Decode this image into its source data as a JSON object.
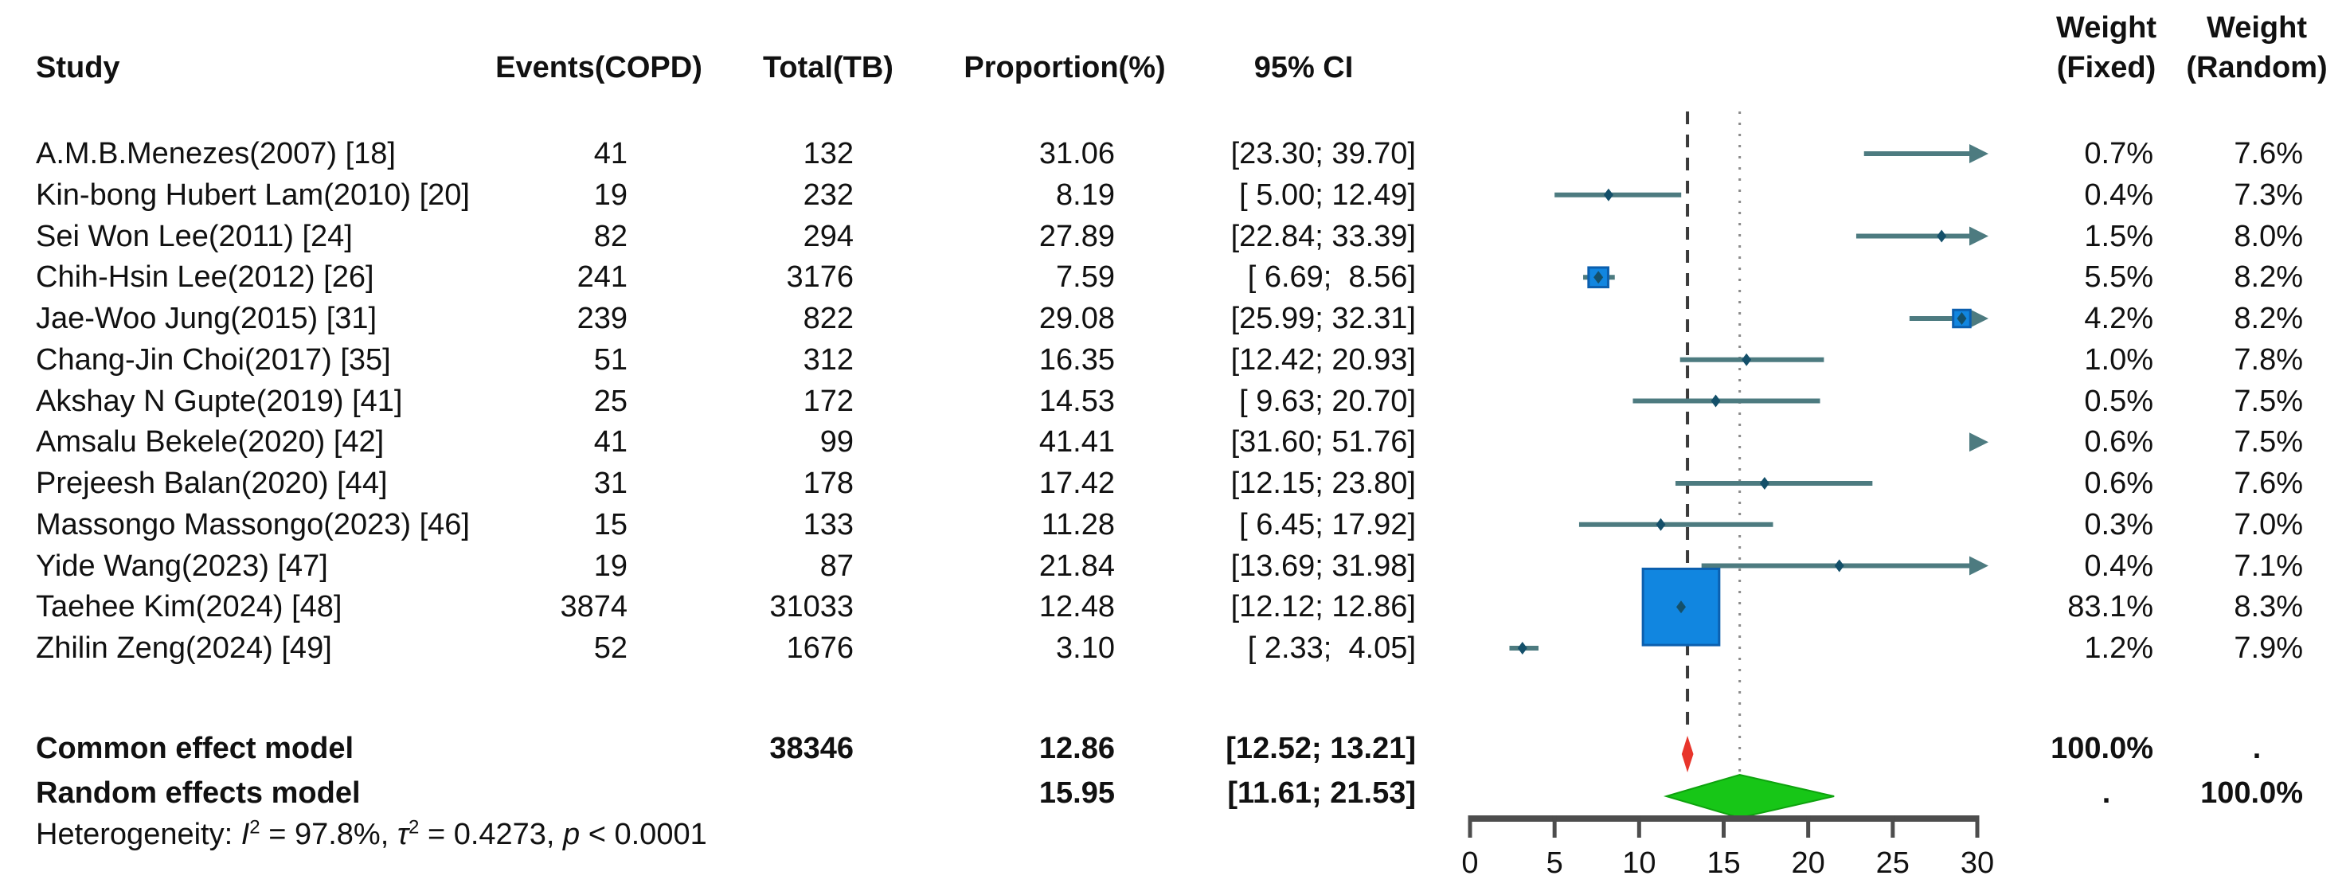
{
  "columns": {
    "study": "Study",
    "events": "Events(COPD)",
    "total": "Total(TB)",
    "proportion": "Proportion(%)",
    "ci": "95% CI",
    "weight_fixed_line1": "Weight",
    "weight_fixed_line2": "(Fixed)",
    "weight_random_line1": "Weight",
    "weight_random_line2": "(Random)"
  },
  "chart_data": {
    "type": "forest",
    "x_axis": {
      "min": 0,
      "max": 30,
      "ticks": [
        0,
        5,
        10,
        15,
        20,
        25,
        30
      ]
    },
    "reference_lines": [
      {
        "value": 12.86,
        "style": "dashed"
      },
      {
        "value": 15.95,
        "style": "dotted"
      }
    ],
    "studies": [
      {
        "name": "A.M.B.Menezes(2007) [18]",
        "events": "41",
        "total": "132",
        "proportion": "31.06",
        "ci_text": "[23.30; 39.70]",
        "point": 31.06,
        "lo": 23.3,
        "hi": 39.7,
        "weight_fixed": "0.7%",
        "weight_random": "7.6%",
        "weight_fixed_value": 0.7
      },
      {
        "name": "Kin-bong Hubert Lam(2010) [20]",
        "events": "19",
        "total": "232",
        "proportion": "8.19",
        "ci_text": "[ 5.00; 12.49]",
        "point": 8.19,
        "lo": 5.0,
        "hi": 12.49,
        "weight_fixed": "0.4%",
        "weight_random": "7.3%",
        "weight_fixed_value": 0.4
      },
      {
        "name": "Sei Won Lee(2011) [24]",
        "events": "82",
        "total": "294",
        "proportion": "27.89",
        "ci_text": "[22.84; 33.39]",
        "point": 27.89,
        "lo": 22.84,
        "hi": 33.39,
        "weight_fixed": "1.5%",
        "weight_random": "8.0%",
        "weight_fixed_value": 1.5
      },
      {
        "name": "Chih-Hsin Lee(2012) [26]",
        "events": "241",
        "total": "3176",
        "proportion": "7.59",
        "ci_text": "[ 6.69;  8.56]",
        "point": 7.59,
        "lo": 6.69,
        "hi": 8.56,
        "weight_fixed": "5.5%",
        "weight_random": "8.2%",
        "weight_fixed_value": 5.5
      },
      {
        "name": "Jae-Woo Jung(2015) [31]",
        "events": "239",
        "total": "822",
        "proportion": "29.08",
        "ci_text": "[25.99; 32.31]",
        "point": 29.08,
        "lo": 25.99,
        "hi": 32.31,
        "weight_fixed": "4.2%",
        "weight_random": "8.2%",
        "weight_fixed_value": 4.2
      },
      {
        "name": "Chang-Jin Choi(2017) [35]",
        "events": "51",
        "total": "312",
        "proportion": "16.35",
        "ci_text": "[12.42; 20.93]",
        "point": 16.35,
        "lo": 12.42,
        "hi": 20.93,
        "weight_fixed": "1.0%",
        "weight_random": "7.8%",
        "weight_fixed_value": 1.0
      },
      {
        "name": "Akshay N Gupte(2019) [41]",
        "events": "25",
        "total": "172",
        "proportion": "14.53",
        "ci_text": "[ 9.63; 20.70]",
        "point": 14.53,
        "lo": 9.63,
        "hi": 20.7,
        "weight_fixed": "0.5%",
        "weight_random": "7.5%",
        "weight_fixed_value": 0.5
      },
      {
        "name": "Amsalu Bekele(2020) [42]",
        "events": "41",
        "total": "99",
        "proportion": "41.41",
        "ci_text": "[31.60; 51.76]",
        "point": 41.41,
        "lo": 31.6,
        "hi": 51.76,
        "weight_fixed": "0.6%",
        "weight_random": "7.5%",
        "weight_fixed_value": 0.6
      },
      {
        "name": "Prejeesh Balan(2020) [44]",
        "events": "31",
        "total": "178",
        "proportion": "17.42",
        "ci_text": "[12.15; 23.80]",
        "point": 17.42,
        "lo": 12.15,
        "hi": 23.8,
        "weight_fixed": "0.6%",
        "weight_random": "7.6%",
        "weight_fixed_value": 0.6
      },
      {
        "name": "Massongo Massongo(2023) [46]",
        "events": "15",
        "total": "133",
        "proportion": "11.28",
        "ci_text": "[ 6.45; 17.92]",
        "point": 11.28,
        "lo": 6.45,
        "hi": 17.92,
        "weight_fixed": "0.3%",
        "weight_random": "7.0%",
        "weight_fixed_value": 0.3
      },
      {
        "name": "Yide Wang(2023) [47]",
        "events": "19",
        "total": "87",
        "proportion": "21.84",
        "ci_text": "[13.69; 31.98]",
        "point": 21.84,
        "lo": 13.69,
        "hi": 31.98,
        "weight_fixed": "0.4%",
        "weight_random": "7.1%",
        "weight_fixed_value": 0.4
      },
      {
        "name": "Taehee Kim(2024) [48]",
        "events": "3874",
        "total": "31033",
        "proportion": "12.48",
        "ci_text": "[12.12; 12.86]",
        "point": 12.48,
        "lo": 12.12,
        "hi": 12.86,
        "weight_fixed": "83.1%",
        "weight_random": "8.3%",
        "weight_fixed_value": 83.1
      },
      {
        "name": "Zhilin Zeng(2024) [49]",
        "events": "52",
        "total": "1676",
        "proportion": "3.10",
        "ci_text": "[ 2.33;  4.05]",
        "point": 3.1,
        "lo": 2.33,
        "hi": 4.05,
        "weight_fixed": "1.2%",
        "weight_random": "7.9%",
        "weight_fixed_value": 1.2
      }
    ],
    "common_effect": {
      "label": "Common effect model",
      "total": "38346",
      "proportion": "12.86",
      "ci_text": "[12.52; 13.21]",
      "point": 12.86,
      "lo": 12.52,
      "hi": 13.21,
      "weight_fixed": "100.0%",
      "weight_random": "."
    },
    "random_effects": {
      "label": "Random effects model",
      "proportion": "15.95",
      "ci_text": "[11.61; 21.53]",
      "point": 15.95,
      "lo": 11.61,
      "hi": 21.53,
      "weight_fixed": ".",
      "weight_random": "100.0%"
    },
    "heterogeneity_segments": [
      {
        "t": "Heterogeneity: "
      },
      {
        "t": "I",
        "i": true
      },
      {
        "t": "2",
        "sup": true
      },
      {
        "t": " = 97.8%, "
      },
      {
        "t": "τ",
        "i": true
      },
      {
        "t": "2",
        "sup": true
      },
      {
        "t": " = 0.4273, "
      },
      {
        "t": "p",
        "i": true
      },
      {
        "t": " < 0.0001"
      }
    ]
  },
  "colors": {
    "ci_line": "#4d7b80",
    "point_marker": "#14506a",
    "square_fill": "#1186e0",
    "square_stroke": "#0c5fae",
    "common_diamond": "#e8352b",
    "random_diamond_fill": "#17c617",
    "random_diamond_stroke": "#0ea30e",
    "axis": "#4d4d4d",
    "dashed_line": "#3a3a3a",
    "dotted_line": "#8a8a8a",
    "text": "#111111"
  }
}
